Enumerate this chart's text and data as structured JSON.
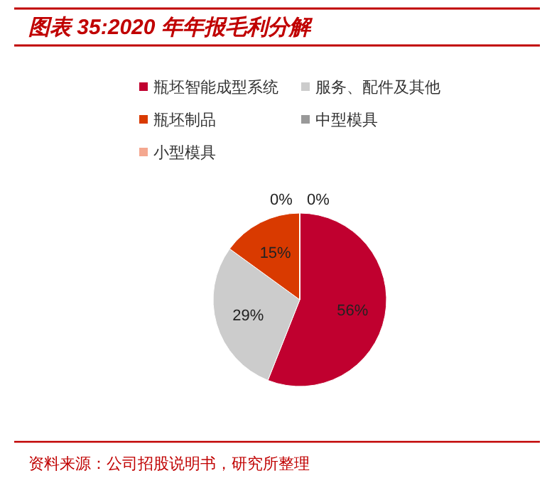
{
  "chart_data": {
    "type": "pie",
    "title": "图表 35:2020 年年报毛利分解",
    "categories": [
      "瓶坯智能成型系统",
      "服务、配件及其他",
      "瓶坯制品",
      "中型模具",
      "小型模具"
    ],
    "values": [
      56,
      29,
      15,
      0,
      0
    ],
    "colors": [
      "#c0002f",
      "#cccccc",
      "#d93a00",
      "#999999",
      "#f4a890"
    ],
    "value_labels": [
      "56%",
      "29%",
      "15%",
      "0%",
      "0%"
    ],
    "legend": "top",
    "annotations": [
      "资料来源：公司招股说明书，研究所整理"
    ]
  }
}
